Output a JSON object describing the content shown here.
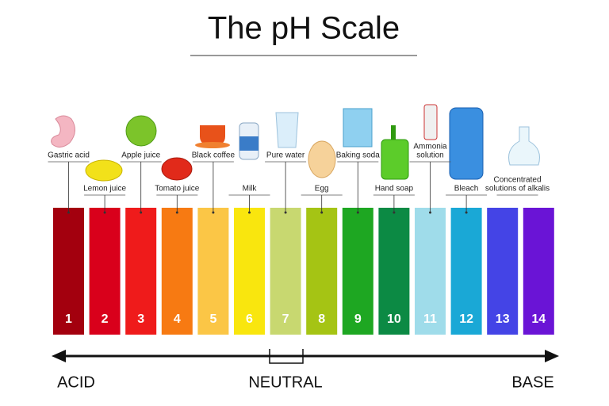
{
  "title": "The pH Scale",
  "scale": [
    {
      "ph": 1,
      "color": "#a3000e",
      "example": [
        "Gastric acid"
      ]
    },
    {
      "ph": 2,
      "color": "#d9001b",
      "example": [
        "Lemon juice"
      ]
    },
    {
      "ph": 3,
      "color": "#ef1b1b",
      "example": [
        "Apple juice"
      ]
    },
    {
      "ph": 4,
      "color": "#f77a12",
      "example": [
        "Tomato juice"
      ]
    },
    {
      "ph": 5,
      "color": "#fbc646",
      "example": [
        "Black coffee"
      ]
    },
    {
      "ph": 6,
      "color": "#f9e60e",
      "example": [
        "Milk"
      ]
    },
    {
      "ph": 7,
      "color": "#c8d870",
      "example": [
        "Pure water"
      ]
    },
    {
      "ph": 8,
      "color": "#a5c414",
      "example": [
        "Egg"
      ]
    },
    {
      "ph": 9,
      "color": "#1ea722",
      "example": [
        "Baking soda"
      ]
    },
    {
      "ph": 10,
      "color": "#0c8a44",
      "example": [
        "Hand soap"
      ]
    },
    {
      "ph": 11,
      "color": "#9fdcea",
      "example": [
        "Ammonia",
        "solution"
      ]
    },
    {
      "ph": 12,
      "color": "#1aa8d6",
      "example": [
        "Bleach"
      ]
    },
    {
      "ph": 13,
      "color": "#4444e6",
      "example": [
        "Concentrated",
        "solutions of alkalis"
      ]
    },
    {
      "ph": 14,
      "color": "#6a14d6"
    }
  ],
  "axis": {
    "left": "ACID",
    "middle": "NEUTRAL",
    "right": "BASE"
  }
}
